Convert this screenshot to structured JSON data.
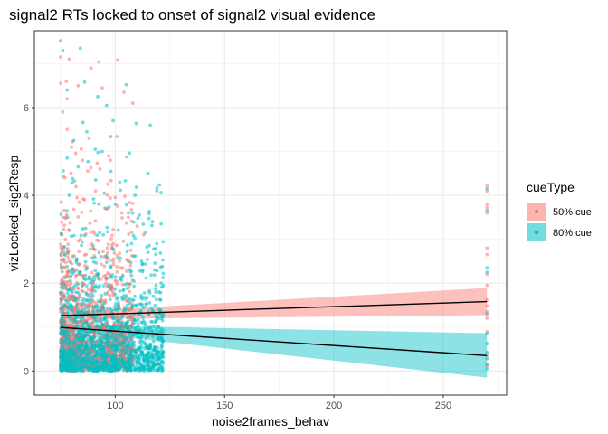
{
  "chart_data": {
    "type": "scatter",
    "title": "signal2 RTs locked to onset of signal2 visual evidence",
    "xlabel": "noise2frames_behav",
    "ylabel": "vizLocked_sig2Resp",
    "xlim": [
      63,
      279
    ],
    "ylim": [
      -0.55,
      7.75
    ],
    "x_ticks": [
      100,
      150,
      200,
      250
    ],
    "y_ticks": [
      0,
      2,
      4,
      6
    ],
    "x_minor_ticks": [
      75,
      125,
      175,
      225,
      275
    ],
    "y_minor_ticks": [
      1,
      3,
      5,
      7
    ],
    "grid": true,
    "legend": {
      "title": "cueType",
      "position": "right",
      "entries": [
        "50% cue",
        "80% cue"
      ]
    },
    "series": [
      {
        "name": "50% cue",
        "color": "#F8766D",
        "points": [
          [
            75,
            7.15
          ],
          [
            75,
            6.55
          ],
          [
            76,
            5.9
          ],
          [
            78,
            6.2
          ],
          [
            83,
            6.5
          ],
          [
            89,
            6.9
          ],
          [
            94,
            6.45
          ],
          [
            101,
            7.08
          ],
          [
            104,
            6.35
          ],
          [
            108,
            6.1
          ],
          [
            78,
            5.5
          ],
          [
            80,
            5.1
          ],
          [
            85,
            4.8
          ],
          [
            88,
            5.3
          ],
          [
            93,
            4.6
          ],
          [
            97,
            4.9
          ],
          [
            77,
            4.4
          ],
          [
            82,
            4.2
          ],
          [
            86,
            3.9
          ],
          [
            91,
            4.1
          ],
          [
            96,
            3.7
          ],
          [
            100,
            3.95
          ],
          [
            103,
            3.6
          ],
          [
            106,
            3.5
          ],
          [
            110,
            3.3
          ],
          [
            113,
            3.1
          ],
          [
            76,
            3.5
          ],
          [
            79,
            3.2
          ],
          [
            84,
            3.0
          ],
          [
            90,
            2.8
          ],
          [
            95,
            2.6
          ],
          [
            99,
            2.9
          ],
          [
            102,
            2.5
          ],
          [
            107,
            2.4
          ],
          [
            270,
            4.22
          ],
          [
            270,
            4.1
          ],
          [
            270,
            3.8
          ],
          [
            270,
            3.72
          ],
          [
            270,
            3.6
          ],
          [
            270,
            2.8
          ],
          [
            270,
            2.65
          ],
          [
            270,
            2.2
          ],
          [
            270,
            1.95
          ],
          [
            270,
            1.62
          ],
          [
            270,
            1.48
          ],
          [
            270,
            1.35
          ],
          [
            270,
            1.2
          ],
          [
            270,
            0.9
          ],
          [
            270,
            0.35
          ],
          [
            270,
            0.12
          ]
        ]
      },
      {
        "name": "80% cue",
        "color": "#00BFC4",
        "points": [
          [
            75,
            7.52
          ],
          [
            76,
            7.3
          ],
          [
            84,
            7.35
          ],
          [
            86,
            6.58
          ],
          [
            78,
            6.4
          ],
          [
            92,
            6.25
          ],
          [
            96,
            6.05
          ],
          [
            105,
            6.52
          ],
          [
            116,
            5.6
          ],
          [
            99,
            5.7
          ],
          [
            81,
            5.25
          ],
          [
            87,
            5.45
          ],
          [
            94,
            5.0
          ],
          [
            98,
            4.55
          ],
          [
            102,
            4.3
          ],
          [
            109,
            4.0
          ],
          [
            115,
            4.5
          ],
          [
            119,
            4.1
          ],
          [
            78,
            4.85
          ],
          [
            83,
            4.65
          ],
          [
            91,
            4.35
          ],
          [
            95,
            4.05
          ],
          [
            100,
            3.8
          ],
          [
            106,
            3.6
          ],
          [
            111,
            3.55
          ],
          [
            117,
            3.4
          ],
          [
            121,
            3.35
          ],
          [
            119,
            2.9
          ],
          [
            115,
            2.7
          ],
          [
            112,
            2.5
          ],
          [
            118,
            2.3
          ],
          [
            121,
            2.0
          ],
          [
            120,
            1.8
          ],
          [
            270,
            4.15
          ],
          [
            270,
            3.65
          ],
          [
            270,
            2.35
          ],
          [
            270,
            2.25
          ],
          [
            270,
            1.3
          ],
          [
            270,
            0.85
          ],
          [
            270,
            0.62
          ],
          [
            270,
            0.42
          ],
          [
            270,
            0.28
          ],
          [
            270,
            0.15
          ],
          [
            270,
            0.05
          ]
        ]
      }
    ],
    "fits": [
      {
        "name": "50% cue",
        "line_color": "#000000",
        "ribbon_color": "#F8766D",
        "x": [
          75,
          270
        ],
        "y": [
          1.26,
          1.58
        ],
        "ymin": [
          1.18,
          1.27
        ],
        "ymax": [
          1.34,
          1.89
        ]
      },
      {
        "name": "80% cue",
        "line_color": "#000000",
        "ribbon_color": "#00BFC4",
        "x": [
          75,
          270
        ],
        "y": [
          0.99,
          0.35
        ],
        "ymin": [
          0.93,
          -0.15
        ],
        "ymax": [
          1.05,
          0.86
        ]
      }
    ]
  }
}
